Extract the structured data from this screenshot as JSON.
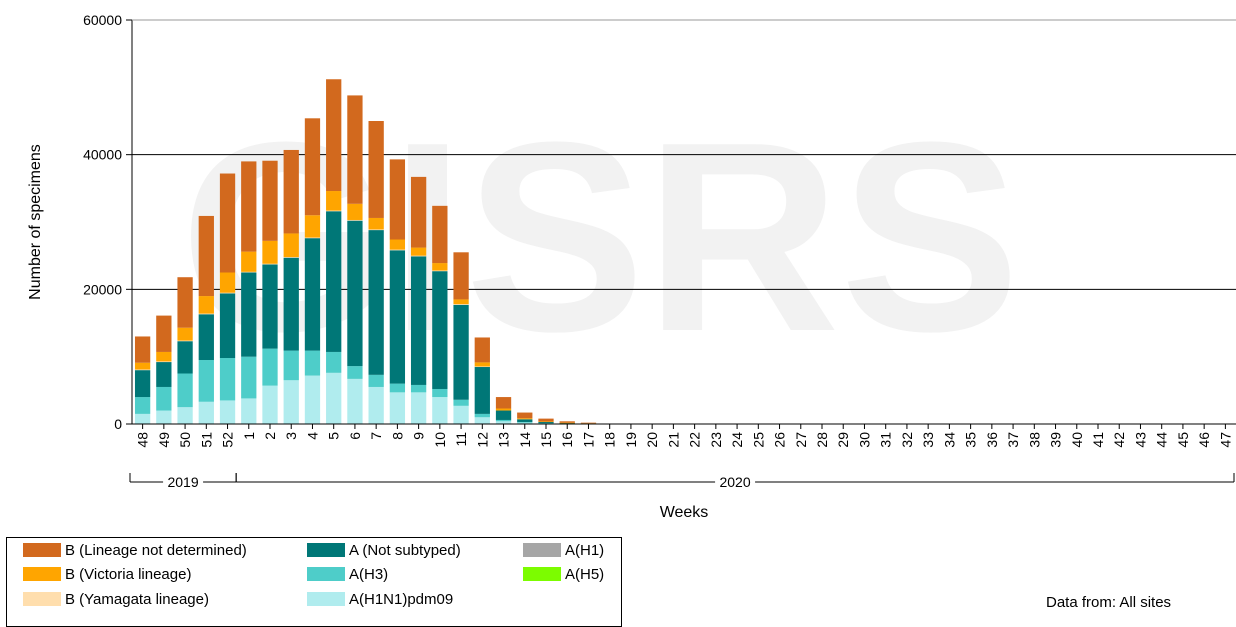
{
  "chart_data": {
    "type": "bar",
    "stacked": true,
    "ylabel": "Number of specimens",
    "xlabel": "Weeks",
    "ylim": [
      0,
      60000
    ],
    "yticks": [
      "0",
      "20000",
      "40000",
      "60000"
    ],
    "grid": "horizontal at 20000 and 40000",
    "watermark": "GISRS",
    "year_groups": [
      {
        "label": "2019",
        "from": "48",
        "to": "52"
      },
      {
        "label": "2020",
        "from": "1",
        "to": "47"
      }
    ],
    "categories": [
      "48",
      "49",
      "50",
      "51",
      "52",
      "1",
      "2",
      "3",
      "4",
      "5",
      "6",
      "7",
      "8",
      "9",
      "10",
      "11",
      "12",
      "13",
      "14",
      "15",
      "16",
      "17",
      "18",
      "19",
      "20",
      "21",
      "22",
      "23",
      "24",
      "25",
      "26",
      "27",
      "28",
      "29",
      "30",
      "31",
      "32",
      "33",
      "34",
      "35",
      "36",
      "37",
      "38",
      "39",
      "40",
      "41",
      "42",
      "43",
      "44",
      "45",
      "46",
      "47"
    ],
    "series": [
      {
        "name": "A(H1N1)pdm09",
        "color": "#b0ecee",
        "values": [
          1500,
          2000,
          2500,
          3300,
          3500,
          3800,
          5700,
          6500,
          7200,
          7600,
          6700,
          5500,
          4700,
          4700,
          4000,
          2700,
          1000,
          400,
          200,
          100,
          50,
          30,
          0,
          0,
          0,
          0,
          0,
          0,
          0,
          0,
          0,
          0,
          0,
          0,
          0,
          0,
          0,
          0,
          0,
          0,
          0,
          0,
          0,
          0,
          0,
          0,
          0,
          0,
          0,
          0,
          0,
          0
        ]
      },
      {
        "name": "A(H3)",
        "color": "#4ecdc9",
        "values": [
          2500,
          3500,
          5000,
          6200,
          6300,
          6200,
          5500,
          4400,
          3700,
          3100,
          1900,
          1800,
          1300,
          1100,
          1200,
          900,
          500,
          200,
          100,
          50,
          30,
          20,
          0,
          0,
          0,
          0,
          0,
          0,
          0,
          0,
          0,
          0,
          0,
          0,
          0,
          0,
          0,
          0,
          0,
          0,
          0,
          0,
          0,
          0,
          0,
          0,
          0,
          0,
          0,
          0,
          0,
          0
        ]
      },
      {
        "name": "A(H1)",
        "color": "#a6a6a6",
        "values": [
          0,
          0,
          0,
          0,
          0,
          0,
          0,
          0,
          0,
          0,
          0,
          0,
          0,
          0,
          0,
          0,
          0,
          0,
          0,
          0,
          0,
          0,
          0,
          0,
          0,
          0,
          0,
          0,
          0,
          0,
          0,
          0,
          0,
          0,
          0,
          0,
          0,
          0,
          0,
          0,
          0,
          0,
          0,
          0,
          0,
          0,
          0,
          0,
          0,
          0,
          0,
          0
        ]
      },
      {
        "name": "A(H5)",
        "color": "#7cfc00",
        "values": [
          0,
          0,
          0,
          0,
          0,
          0,
          0,
          0,
          0,
          0,
          0,
          0,
          0,
          0,
          0,
          0,
          0,
          0,
          0,
          0,
          0,
          0,
          0,
          0,
          0,
          0,
          0,
          0,
          0,
          0,
          0,
          0,
          0,
          0,
          0,
          0,
          0,
          0,
          0,
          0,
          0,
          0,
          0,
          0,
          0,
          0,
          0,
          0,
          0,
          0,
          0,
          0
        ]
      },
      {
        "name": "A (Not subtyped)",
        "color": "#007777",
        "values": [
          4000,
          3700,
          4800,
          6800,
          9600,
          12500,
          12500,
          13800,
          16700,
          20900,
          21600,
          21500,
          19800,
          19100,
          17500,
          14100,
          7000,
          1400,
          400,
          150,
          80,
          40,
          0,
          0,
          0,
          0,
          0,
          0,
          0,
          0,
          0,
          0,
          0,
          0,
          0,
          0,
          0,
          0,
          0,
          0,
          0,
          0,
          0,
          0,
          0,
          0,
          0,
          0,
          0,
          0,
          0,
          0
        ]
      },
      {
        "name": "B (Yamagata lineage)",
        "color": "#ffdead",
        "values": [
          100,
          100,
          100,
          100,
          100,
          100,
          100,
          100,
          100,
          100,
          100,
          100,
          100,
          100,
          100,
          100,
          50,
          0,
          0,
          0,
          0,
          0,
          0,
          0,
          0,
          0,
          0,
          0,
          0,
          0,
          0,
          0,
          0,
          0,
          0,
          0,
          0,
          0,
          0,
          0,
          0,
          0,
          0,
          0,
          0,
          0,
          0,
          0,
          0,
          0,
          0,
          0
        ]
      },
      {
        "name": "B (Victoria lineage)",
        "color": "#ffa500",
        "values": [
          1000,
          1400,
          1900,
          2600,
          3000,
          3000,
          3400,
          3500,
          3300,
          2900,
          2400,
          1700,
          1500,
          1200,
          1100,
          700,
          600,
          300,
          150,
          80,
          40,
          20,
          0,
          0,
          0,
          0,
          0,
          0,
          0,
          0,
          0,
          0,
          0,
          0,
          0,
          0,
          0,
          0,
          0,
          0,
          0,
          0,
          0,
          0,
          0,
          0,
          0,
          0,
          0,
          0,
          0,
          0
        ]
      },
      {
        "name": "B (Lineage not determined)",
        "color": "#d2691e",
        "values": [
          3900,
          5400,
          7500,
          11900,
          14700,
          13400,
          11900,
          12400,
          14400,
          16600,
          16100,
          14400,
          11900,
          10500,
          8500,
          7000,
          3700,
          1700,
          850,
          420,
          200,
          90,
          40,
          20,
          0,
          0,
          0,
          0,
          0,
          0,
          0,
          0,
          0,
          0,
          0,
          0,
          0,
          0,
          0,
          0,
          0,
          0,
          0,
          0,
          0,
          0,
          0,
          0,
          0,
          0,
          0,
          0
        ]
      }
    ]
  },
  "legend": {
    "items": [
      {
        "label": "B (Lineage not determined)",
        "color": "#d2691e"
      },
      {
        "label": "B (Victoria lineage)",
        "color": "#ffa500"
      },
      {
        "label": "B (Yamagata lineage)",
        "color": "#ffdead"
      },
      {
        "label": "A (Not subtyped)",
        "color": "#007777"
      },
      {
        "label": "A(H3)",
        "color": "#4ecdc9"
      },
      {
        "label": "A(H1N1)pdm09",
        "color": "#b0ecee"
      },
      {
        "label": "A(H1)",
        "color": "#a6a6a6"
      },
      {
        "label": "A(H5)",
        "color": "#7cfc00"
      }
    ]
  },
  "source_note": "Data from: All sites"
}
